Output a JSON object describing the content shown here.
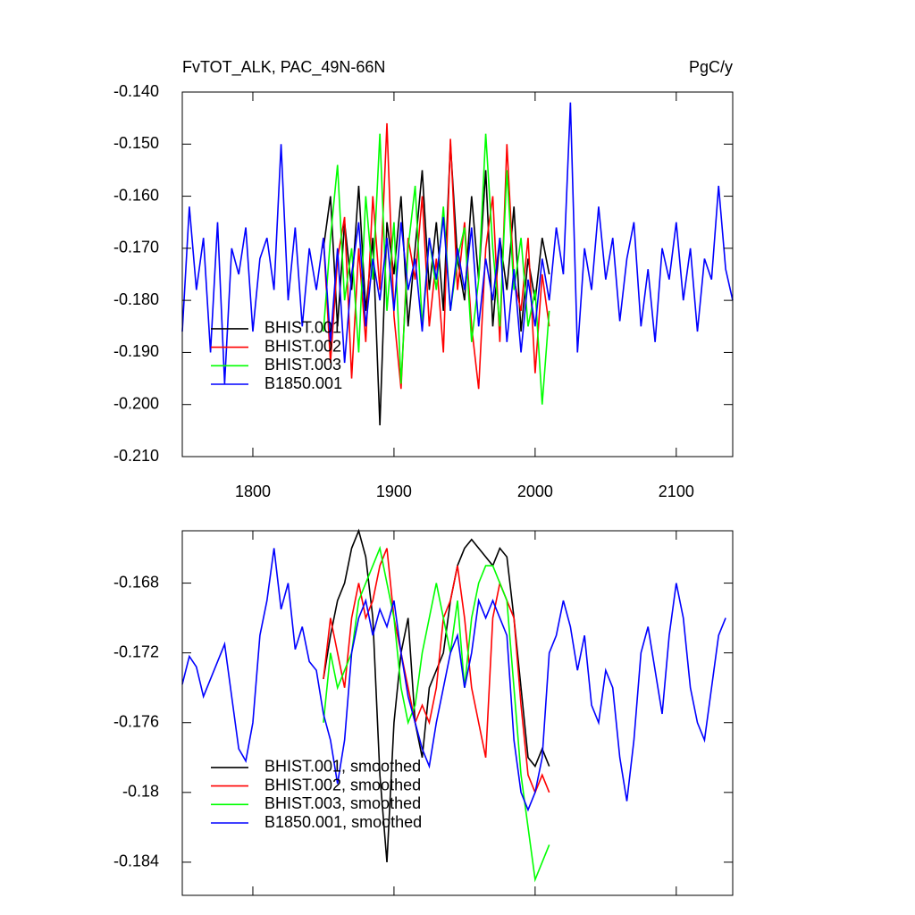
{
  "chart_data": [
    {
      "type": "line",
      "title": "FvTOT_ALK, PAC_49N-66N",
      "unit_label": "PgC/y",
      "xlim": [
        1750,
        2140
      ],
      "xticks": [
        1800,
        1900,
        2000,
        2100
      ],
      "show_xtick_labels": true,
      "ylim": [
        -0.21,
        -0.14
      ],
      "yticks": [
        {
          "value": -0.14,
          "label": "-0.140"
        },
        {
          "value": -0.15,
          "label": "-0.150"
        },
        {
          "value": -0.16,
          "label": "-0.160"
        },
        {
          "value": -0.17,
          "label": "-0.170"
        },
        {
          "value": -0.18,
          "label": "-0.180"
        },
        {
          "value": -0.19,
          "label": "-0.190"
        },
        {
          "value": -0.2,
          "label": "-0.200"
        },
        {
          "value": -0.21,
          "label": "-0.210"
        }
      ],
      "legend": "lower left",
      "series": [
        {
          "name": "BHIST.001",
          "color": "#000000",
          "x": [
            1850,
            1855,
            1860,
            1865,
            1870,
            1875,
            1880,
            1885,
            1890,
            1895,
            1900,
            1905,
            1910,
            1915,
            1920,
            1925,
            1930,
            1935,
            1940,
            1945,
            1950,
            1955,
            1960,
            1965,
            1970,
            1975,
            1980,
            1985,
            1990,
            1995,
            2000,
            2005,
            2010
          ],
          "values": [
            -0.17,
            -0.16,
            -0.185,
            -0.165,
            -0.178,
            -0.158,
            -0.182,
            -0.168,
            -0.204,
            -0.165,
            -0.175,
            -0.16,
            -0.185,
            -0.17,
            -0.155,
            -0.178,
            -0.165,
            -0.182,
            -0.15,
            -0.172,
            -0.18,
            -0.16,
            -0.176,
            -0.155,
            -0.185,
            -0.168,
            -0.178,
            -0.162,
            -0.186,
            -0.172,
            -0.18,
            -0.168,
            -0.175
          ]
        },
        {
          "name": "BHIST.002",
          "color": "#ff0000",
          "x": [
            1850,
            1855,
            1860,
            1865,
            1870,
            1875,
            1880,
            1885,
            1890,
            1895,
            1900,
            1905,
            1910,
            1915,
            1920,
            1925,
            1930,
            1935,
            1940,
            1945,
            1950,
            1955,
            1960,
            1965,
            1970,
            1975,
            1980,
            1985,
            1990,
            1995,
            2000,
            2005,
            2010
          ],
          "values": [
            -0.168,
            -0.192,
            -0.172,
            -0.164,
            -0.195,
            -0.17,
            -0.188,
            -0.16,
            -0.178,
            -0.146,
            -0.183,
            -0.197,
            -0.168,
            -0.176,
            -0.16,
            -0.185,
            -0.172,
            -0.19,
            -0.149,
            -0.178,
            -0.165,
            -0.185,
            -0.197,
            -0.17,
            -0.16,
            -0.188,
            -0.15,
            -0.176,
            -0.182,
            -0.168,
            -0.194,
            -0.175,
            -0.185
          ]
        },
        {
          "name": "BHIST.003",
          "color": "#00ff00",
          "x": [
            1850,
            1855,
            1860,
            1865,
            1870,
            1875,
            1880,
            1885,
            1890,
            1895,
            1900,
            1905,
            1910,
            1915,
            1920,
            1925,
            1930,
            1935,
            1940,
            1945,
            1950,
            1955,
            1960,
            1965,
            1970,
            1975,
            1980,
            1985,
            1990,
            1995,
            2000,
            2005,
            2010
          ],
          "values": [
            -0.186,
            -0.168,
            -0.154,
            -0.18,
            -0.17,
            -0.19,
            -0.16,
            -0.176,
            -0.148,
            -0.182,
            -0.165,
            -0.196,
            -0.17,
            -0.158,
            -0.185,
            -0.168,
            -0.178,
            -0.162,
            -0.182,
            -0.172,
            -0.166,
            -0.188,
            -0.176,
            -0.148,
            -0.17,
            -0.185,
            -0.155,
            -0.178,
            -0.168,
            -0.185,
            -0.178,
            -0.2,
            -0.182
          ]
        },
        {
          "name": "B1850.001",
          "color": "#0000ff",
          "x": [
            1750,
            1755,
            1760,
            1765,
            1770,
            1775,
            1780,
            1785,
            1790,
            1795,
            1800,
            1805,
            1810,
            1815,
            1820,
            1825,
            1830,
            1835,
            1840,
            1845,
            1850,
            1855,
            1860,
            1865,
            1870,
            1875,
            1880,
            1885,
            1890,
            1895,
            1900,
            1905,
            1910,
            1915,
            1920,
            1925,
            1930,
            1935,
            1940,
            1945,
            1950,
            1955,
            1960,
            1965,
            1970,
            1975,
            1980,
            1985,
            1990,
            1995,
            2000,
            2005,
            2010,
            2015,
            2020,
            2025,
            2030,
            2035,
            2040,
            2045,
            2050,
            2055,
            2060,
            2065,
            2070,
            2075,
            2080,
            2085,
            2090,
            2095,
            2100,
            2105,
            2110,
            2115,
            2120,
            2125,
            2130,
            2135,
            2140
          ],
          "values": [
            -0.186,
            -0.162,
            -0.178,
            -0.168,
            -0.19,
            -0.165,
            -0.196,
            -0.17,
            -0.175,
            -0.166,
            -0.186,
            -0.172,
            -0.168,
            -0.178,
            -0.15,
            -0.18,
            -0.166,
            -0.185,
            -0.17,
            -0.178,
            -0.168,
            -0.188,
            -0.17,
            -0.192,
            -0.175,
            -0.165,
            -0.185,
            -0.172,
            -0.18,
            -0.168,
            -0.182,
            -0.165,
            -0.178,
            -0.172,
            -0.186,
            -0.168,
            -0.176,
            -0.164,
            -0.182,
            -0.17,
            -0.178,
            -0.166,
            -0.185,
            -0.172,
            -0.18,
            -0.168,
            -0.188,
            -0.174,
            -0.19,
            -0.176,
            -0.185,
            -0.172,
            -0.18,
            -0.166,
            -0.175,
            -0.142,
            -0.19,
            -0.17,
            -0.178,
            -0.162,
            -0.176,
            -0.168,
            -0.184,
            -0.172,
            -0.165,
            -0.185,
            -0.174,
            -0.188,
            -0.17,
            -0.176,
            -0.165,
            -0.18,
            -0.17,
            -0.186,
            -0.172,
            -0.176,
            -0.158,
            -0.174,
            -0.18
          ]
        }
      ]
    },
    {
      "type": "line",
      "xlim": [
        1750,
        2140
      ],
      "xticks": [
        1800,
        1900,
        2000,
        2100
      ],
      "show_xtick_labels": false,
      "ylim": [
        -0.1859,
        -0.165
      ],
      "yticks": [
        -0.168,
        -0.172,
        -0.176,
        -0.18,
        -0.184
      ],
      "legend": "lower left",
      "series": [
        {
          "name": "BHIST.001, smoothed",
          "color": "#000000",
          "x": [
            1850,
            1855,
            1860,
            1865,
            1870,
            1875,
            1880,
            1885,
            1890,
            1895,
            1900,
            1905,
            1910,
            1915,
            1920,
            1925,
            1930,
            1935,
            1940,
            1945,
            1950,
            1955,
            1960,
            1965,
            1970,
            1975,
            1980,
            1985,
            1990,
            1995,
            2000,
            2005,
            2010
          ],
          "values": [
            -0.1735,
            -0.171,
            -0.169,
            -0.168,
            -0.166,
            -0.165,
            -0.1665,
            -0.17,
            -0.179,
            -0.184,
            -0.176,
            -0.172,
            -0.17,
            -0.176,
            -0.178,
            -0.174,
            -0.173,
            -0.172,
            -0.169,
            -0.167,
            -0.166,
            -0.1655,
            -0.166,
            -0.1665,
            -0.167,
            -0.166,
            -0.1665,
            -0.17,
            -0.174,
            -0.178,
            -0.1785,
            -0.1775,
            -0.1785
          ]
        },
        {
          "name": "BHIST.002, smoothed",
          "color": "#ff0000",
          "x": [
            1850,
            1855,
            1860,
            1865,
            1870,
            1875,
            1880,
            1885,
            1890,
            1895,
            1900,
            1905,
            1910,
            1915,
            1920,
            1925,
            1930,
            1935,
            1940,
            1945,
            1950,
            1955,
            1960,
            1965,
            1970,
            1975,
            1980,
            1985,
            1990,
            1995,
            2000,
            2005,
            2010
          ],
          "values": [
            -0.1735,
            -0.17,
            -0.172,
            -0.174,
            -0.17,
            -0.168,
            -0.17,
            -0.169,
            -0.167,
            -0.166,
            -0.17,
            -0.172,
            -0.174,
            -0.176,
            -0.175,
            -0.176,
            -0.174,
            -0.17,
            -0.169,
            -0.167,
            -0.17,
            -0.174,
            -0.176,
            -0.178,
            -0.17,
            -0.168,
            -0.169,
            -0.17,
            -0.175,
            -0.179,
            -0.18,
            -0.179,
            -0.18
          ]
        },
        {
          "name": "BHIST.003, smoothed",
          "color": "#00ff00",
          "x": [
            1850,
            1855,
            1860,
            1865,
            1870,
            1875,
            1880,
            1885,
            1890,
            1895,
            1900,
            1905,
            1910,
            1915,
            1920,
            1925,
            1930,
            1935,
            1940,
            1945,
            1950,
            1955,
            1960,
            1965,
            1970,
            1975,
            1980,
            1985,
            1990,
            1995,
            2000,
            2005,
            2010
          ],
          "values": [
            -0.176,
            -0.172,
            -0.174,
            -0.173,
            -0.172,
            -0.169,
            -0.168,
            -0.167,
            -0.166,
            -0.168,
            -0.17,
            -0.174,
            -0.176,
            -0.175,
            -0.172,
            -0.17,
            -0.168,
            -0.17,
            -0.172,
            -0.169,
            -0.174,
            -0.17,
            -0.168,
            -0.167,
            -0.167,
            -0.168,
            -0.169,
            -0.174,
            -0.179,
            -0.182,
            -0.185,
            -0.184,
            -0.183
          ]
        },
        {
          "name": "B1850.001, smoothed",
          "color": "#0000ff",
          "x": [
            1750,
            1755,
            1760,
            1765,
            1770,
            1775,
            1780,
            1785,
            1790,
            1795,
            1800,
            1805,
            1810,
            1815,
            1820,
            1825,
            1830,
            1835,
            1840,
            1845,
            1850,
            1855,
            1860,
            1865,
            1870,
            1875,
            1880,
            1885,
            1890,
            1895,
            1900,
            1905,
            1910,
            1915,
            1920,
            1925,
            1930,
            1935,
            1940,
            1945,
            1950,
            1955,
            1960,
            1965,
            1970,
            1975,
            1980,
            1985,
            1990,
            1995,
            2000,
            2005,
            2010,
            2015,
            2020,
            2025,
            2030,
            2035,
            2040,
            2045,
            2050,
            2055,
            2060,
            2065,
            2070,
            2075,
            2080,
            2085,
            2090,
            2095,
            2100,
            2105,
            2110,
            2115,
            2120,
            2125,
            2130,
            2135
          ],
          "values": [
            -0.1738,
            -0.1722,
            -0.1728,
            -0.1745,
            -0.1735,
            -0.1725,
            -0.1715,
            -0.1745,
            -0.1775,
            -0.1782,
            -0.176,
            -0.171,
            -0.169,
            -0.166,
            -0.1695,
            -0.168,
            -0.1718,
            -0.1705,
            -0.1725,
            -0.173,
            -0.1755,
            -0.177,
            -0.1795,
            -0.177,
            -0.172,
            -0.17,
            -0.169,
            -0.171,
            -0.1695,
            -0.1705,
            -0.169,
            -0.172,
            -0.1745,
            -0.176,
            -0.1775,
            -0.1785,
            -0.176,
            -0.174,
            -0.172,
            -0.171,
            -0.174,
            -0.172,
            -0.169,
            -0.17,
            -0.169,
            -0.17,
            -0.171,
            -0.177,
            -0.18,
            -0.181,
            -0.18,
            -0.178,
            -0.172,
            -0.171,
            -0.169,
            -0.1705,
            -0.173,
            -0.171,
            -0.175,
            -0.176,
            -0.173,
            -0.174,
            -0.178,
            -0.1805,
            -0.177,
            -0.172,
            -0.1705,
            -0.173,
            -0.1755,
            -0.171,
            -0.168,
            -0.17,
            -0.174,
            -0.176,
            -0.177,
            -0.174,
            -0.171,
            -0.17
          ]
        }
      ]
    }
  ]
}
